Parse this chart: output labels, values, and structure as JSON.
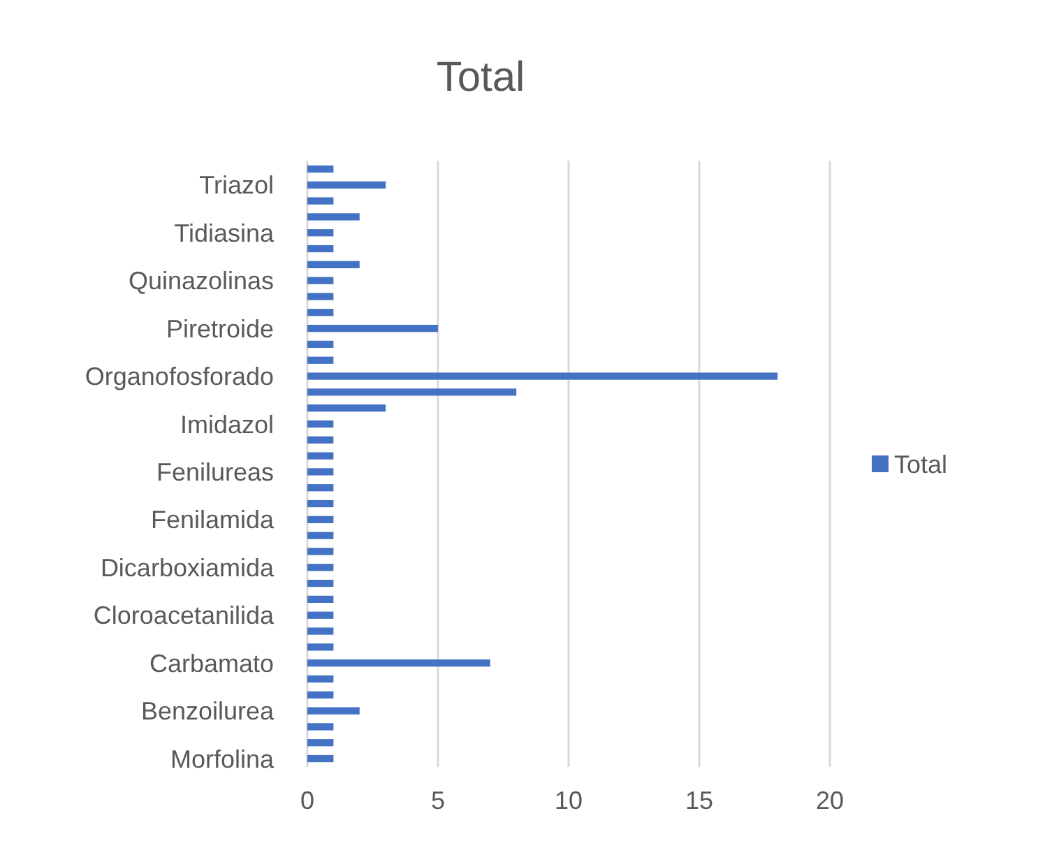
{
  "chart_data": {
    "type": "bar",
    "orientation": "horizontal",
    "title": "Total",
    "categories": [
      null,
      "Triazol",
      null,
      null,
      "Tidiasina",
      null,
      null,
      "Quinazolinas",
      null,
      null,
      "Piretroide",
      null,
      null,
      "Organofosforado",
      null,
      null,
      "Imidazol",
      null,
      null,
      "Fenilureas",
      null,
      null,
      "Fenilamida",
      null,
      null,
      "Dicarboxiamida",
      null,
      null,
      "Cloroacetanilida",
      null,
      null,
      "Carbamato",
      null,
      null,
      "Benzoilurea",
      null,
      null,
      "Morfolina"
    ],
    "series": [
      {
        "name": "Total",
        "color": "#4472c4",
        "values": [
          1,
          3,
          1,
          2,
          1,
          1,
          2,
          1,
          1,
          1,
          5,
          1,
          1,
          18,
          8,
          3,
          1,
          1,
          1,
          1,
          1,
          1,
          1,
          1,
          1,
          1,
          1,
          1,
          1,
          1,
          1,
          7,
          1,
          1,
          2,
          1,
          1,
          1
        ]
      }
    ],
    "xlim": [
      0,
      20
    ],
    "xticks": [
      0,
      5,
      10,
      15,
      20
    ],
    "grid": "x",
    "legend": "right"
  }
}
